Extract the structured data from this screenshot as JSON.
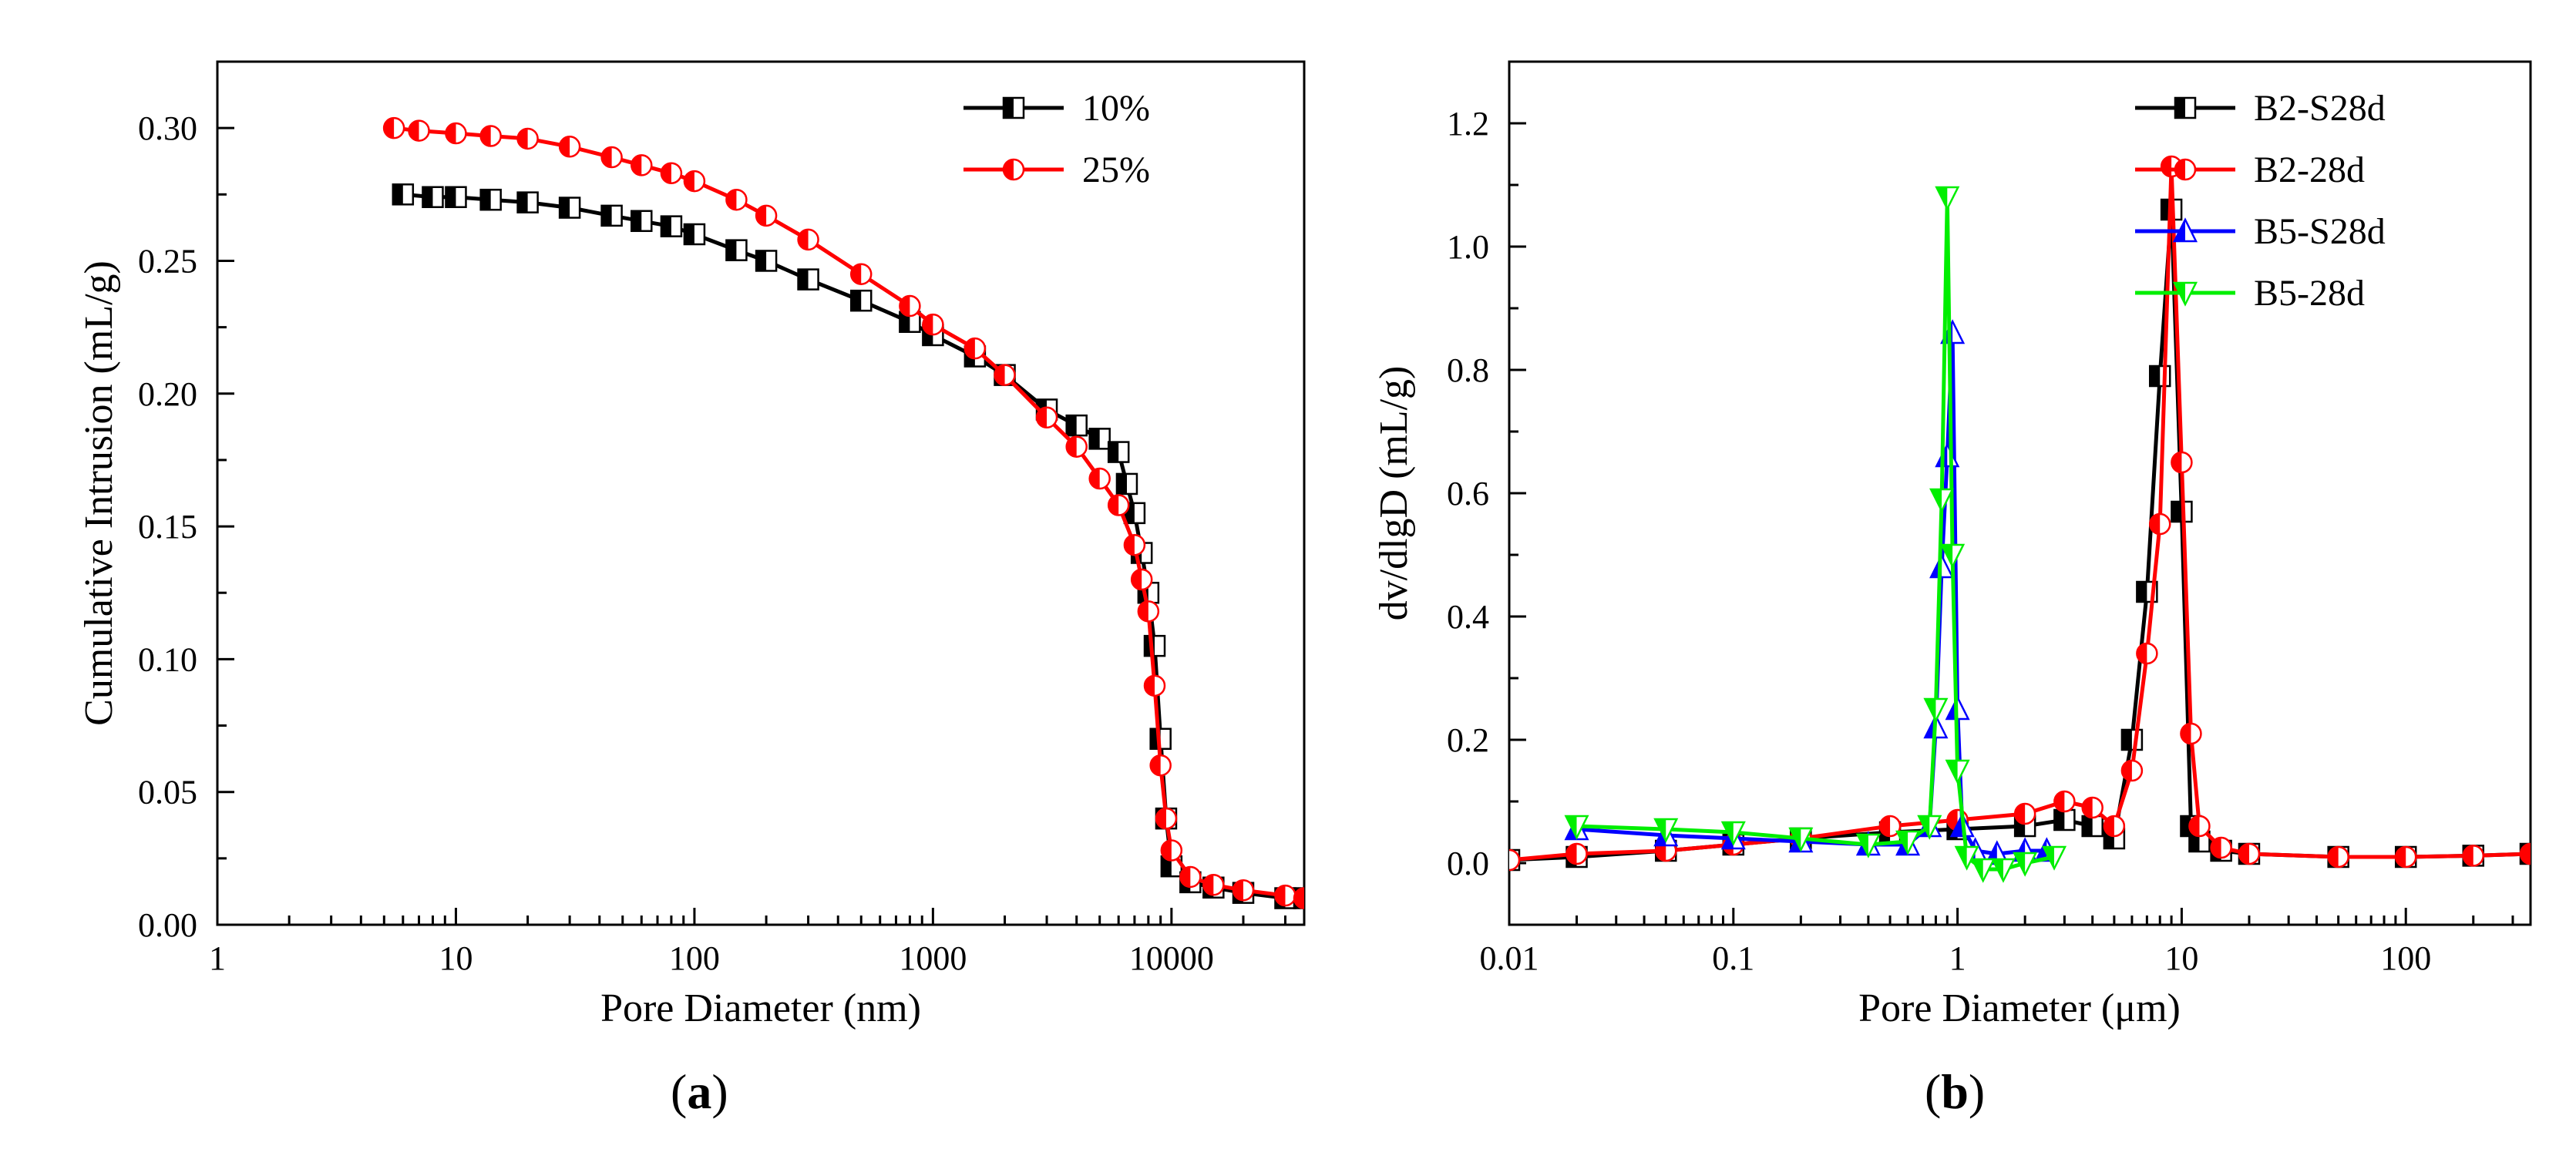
{
  "chart_data": [
    {
      "type": "line",
      "panel_label": "a",
      "xlabel": "Pore Diameter (nm)",
      "ylabel": "Cumulative Intrusion (mL/g)",
      "x_scale": "log",
      "xlim": [
        1,
        36000
      ],
      "ylim": [
        0,
        0.325
      ],
      "x_ticks": [
        1,
        10,
        100,
        1000,
        10000
      ],
      "x_tick_labels": [
        "1",
        "10",
        "100",
        "1000",
        "10000"
      ],
      "y_ticks": [
        0,
        0.05,
        0.1,
        0.15,
        0.2,
        0.25,
        0.3
      ],
      "y_tick_labels": [
        "0.00",
        "0.05",
        "0.10",
        "0.15",
        "0.20",
        "0.25",
        "0.30"
      ],
      "legend_position": "top-right",
      "series": [
        {
          "name": "10%",
          "color": "#000000",
          "marker": "half-filled-square",
          "points": [
            [
              6,
              0.275
            ],
            [
              8,
              0.274
            ],
            [
              10,
              0.274
            ],
            [
              14,
              0.273
            ],
            [
              20,
              0.272
            ],
            [
              30,
              0.27
            ],
            [
              45,
              0.267
            ],
            [
              60,
              0.265
            ],
            [
              80,
              0.263
            ],
            [
              100,
              0.26
            ],
            [
              150,
              0.254
            ],
            [
              200,
              0.25
            ],
            [
              300,
              0.243
            ],
            [
              500,
              0.235
            ],
            [
              800,
              0.227
            ],
            [
              1000,
              0.222
            ],
            [
              1500,
              0.214
            ],
            [
              2000,
              0.207
            ],
            [
              3000,
              0.194
            ],
            [
              4000,
              0.188
            ],
            [
              5000,
              0.183
            ],
            [
              6000,
              0.178
            ],
            [
              6500,
              0.166
            ],
            [
              7000,
              0.155
            ],
            [
              7500,
              0.14
            ],
            [
              8000,
              0.125
            ],
            [
              8500,
              0.105
            ],
            [
              9000,
              0.07
            ],
            [
              9500,
              0.04
            ],
            [
              10000,
              0.022
            ],
            [
              12000,
              0.016
            ],
            [
              15000,
              0.014
            ],
            [
              20000,
              0.012
            ],
            [
              30000,
              0.01
            ],
            [
              36000,
              0.01
            ]
          ]
        },
        {
          "name": "25%",
          "color": "#ff0000",
          "marker": "half-filled-circle",
          "points": [
            [
              5.5,
              0.3
            ],
            [
              7,
              0.299
            ],
            [
              10,
              0.298
            ],
            [
              14,
              0.297
            ],
            [
              20,
              0.296
            ],
            [
              30,
              0.293
            ],
            [
              45,
              0.289
            ],
            [
              60,
              0.286
            ],
            [
              80,
              0.283
            ],
            [
              100,
              0.28
            ],
            [
              150,
              0.273
            ],
            [
              200,
              0.267
            ],
            [
              300,
              0.258
            ],
            [
              500,
              0.245
            ],
            [
              800,
              0.233
            ],
            [
              1000,
              0.226
            ],
            [
              1500,
              0.217
            ],
            [
              2000,
              0.207
            ],
            [
              3000,
              0.191
            ],
            [
              4000,
              0.18
            ],
            [
              5000,
              0.168
            ],
            [
              6000,
              0.158
            ],
            [
              7000,
              0.143
            ],
            [
              7500,
              0.13
            ],
            [
              8000,
              0.118
            ],
            [
              8500,
              0.09
            ],
            [
              9000,
              0.06
            ],
            [
              9500,
              0.04
            ],
            [
              10000,
              0.028
            ],
            [
              12000,
              0.018
            ],
            [
              15000,
              0.015
            ],
            [
              20000,
              0.013
            ],
            [
              30000,
              0.011
            ],
            [
              36000,
              0.01
            ]
          ]
        }
      ]
    },
    {
      "type": "line",
      "panel_label": "b",
      "xlabel": "Pore Diameter (μm)",
      "ylabel": "dv/dlgD (mL/g)",
      "x_scale": "log",
      "xlim": [
        0.01,
        360
      ],
      "ylim": [
        -0.1,
        1.3
      ],
      "x_ticks": [
        0.01,
        0.1,
        1,
        10,
        100
      ],
      "x_tick_labels": [
        "0.01",
        "0.1",
        "1",
        "10",
        "100"
      ],
      "y_ticks": [
        0,
        0.2,
        0.4,
        0.6,
        0.8,
        1.0,
        1.2
      ],
      "y_tick_labels": [
        "0.0",
        "0.2",
        "0.4",
        "0.6",
        "0.8",
        "1.0",
        "1.2"
      ],
      "legend_position": "top-right",
      "series": [
        {
          "name": "B2-S28d",
          "color": "#000000",
          "marker": "half-filled-square",
          "points": [
            [
              0.01,
              0.005
            ],
            [
              0.02,
              0.01
            ],
            [
              0.05,
              0.02
            ],
            [
              0.1,
              0.03
            ],
            [
              0.2,
              0.04
            ],
            [
              0.5,
              0.05
            ],
            [
              1,
              0.055
            ],
            [
              2,
              0.06
            ],
            [
              3,
              0.07
            ],
            [
              4,
              0.06
            ],
            [
              5,
              0.04
            ],
            [
              6,
              0.2
            ],
            [
              7,
              0.44
            ],
            [
              8,
              0.79
            ],
            [
              9,
              1.06
            ],
            [
              10,
              0.57
            ],
            [
              11,
              0.06
            ],
            [
              12,
              0.035
            ],
            [
              15,
              0.02
            ],
            [
              20,
              0.015
            ],
            [
              50,
              0.01
            ],
            [
              100,
              0.01
            ],
            [
              200,
              0.012
            ],
            [
              360,
              0.015
            ]
          ]
        },
        {
          "name": "B2-28d",
          "color": "#ff0000",
          "marker": "half-filled-circle",
          "points": [
            [
              0.01,
              0.005
            ],
            [
              0.02,
              0.015
            ],
            [
              0.05,
              0.02
            ],
            [
              0.1,
              0.03
            ],
            [
              0.2,
              0.04
            ],
            [
              0.5,
              0.06
            ],
            [
              1,
              0.07
            ],
            [
              2,
              0.08
            ],
            [
              3,
              0.1
            ],
            [
              4,
              0.09
            ],
            [
              5,
              0.06
            ],
            [
              6,
              0.15
            ],
            [
              7,
              0.34
            ],
            [
              8,
              0.55
            ],
            [
              9,
              1.13
            ],
            [
              10,
              0.65
            ],
            [
              11,
              0.21
            ],
            [
              12,
              0.06
            ],
            [
              15,
              0.025
            ],
            [
              20,
              0.015
            ],
            [
              50,
              0.01
            ],
            [
              100,
              0.01
            ],
            [
              200,
              0.012
            ],
            [
              360,
              0.015
            ]
          ]
        },
        {
          "name": "B5-S28d",
          "color": "#0000ff",
          "marker": "half-filled-triangle-up",
          "points": [
            [
              0.02,
              0.055
            ],
            [
              0.05,
              0.045
            ],
            [
              0.1,
              0.04
            ],
            [
              0.2,
              0.035
            ],
            [
              0.4,
              0.03
            ],
            [
              0.6,
              0.03
            ],
            [
              0.75,
              0.06
            ],
            [
              0.8,
              0.22
            ],
            [
              0.85,
              0.48
            ],
            [
              0.9,
              0.66
            ],
            [
              0.95,
              0.86
            ],
            [
              1,
              0.25
            ],
            [
              1.05,
              0.06
            ],
            [
              1.2,
              0.02
            ],
            [
              1.5,
              0.015
            ],
            [
              2,
              0.02
            ],
            [
              2.5,
              0.02
            ]
          ]
        },
        {
          "name": "B5-28d",
          "color": "#00ee00",
          "marker": "half-filled-triangle-down",
          "points": [
            [
              0.02,
              0.06
            ],
            [
              0.05,
              0.055
            ],
            [
              0.1,
              0.05
            ],
            [
              0.2,
              0.04
            ],
            [
              0.4,
              0.03
            ],
            [
              0.6,
              0.035
            ],
            [
              0.75,
              0.06
            ],
            [
              0.8,
              0.25
            ],
            [
              0.85,
              0.59
            ],
            [
              0.9,
              1.08
            ],
            [
              0.95,
              0.5
            ],
            [
              1,
              0.15
            ],
            [
              1.1,
              0.01
            ],
            [
              1.3,
              -0.01
            ],
            [
              1.6,
              -0.01
            ],
            [
              2,
              0.0
            ],
            [
              2.7,
              0.01
            ]
          ]
        }
      ]
    }
  ]
}
